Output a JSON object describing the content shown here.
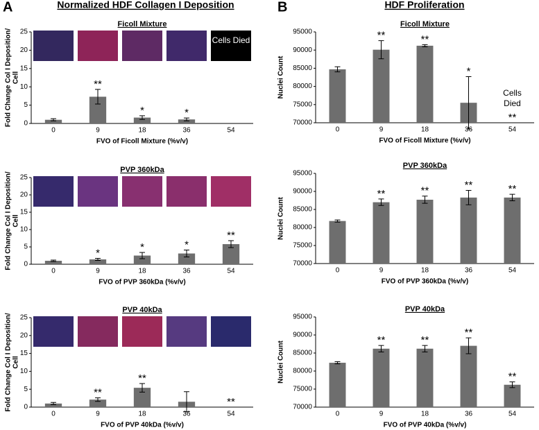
{
  "panels": [
    {
      "letter": "A",
      "title": "Normalized HDF Collagen I Deposition"
    },
    {
      "letter": "B",
      "title": "HDF Proliferation"
    }
  ],
  "chart_data": [
    {
      "type": "bar",
      "title": "Ficoll Mixture",
      "y_label": [
        "Fold Change Col I Deposition/",
        "Cell"
      ],
      "x_label": "FVO of Ficoll Mixture (%v/v)",
      "categories": [
        "0",
        "9",
        "18",
        "36",
        "54"
      ],
      "values": [
        1,
        7.3,
        1.6,
        1.1,
        null
      ],
      "errors": [
        0.3,
        2.0,
        0.5,
        0.4,
        null
      ],
      "significance": [
        null,
        "**",
        "*",
        "*",
        null
      ],
      "image_label": "Cells Died",
      "color": "#6e6e6e",
      "ylim": [
        0,
        25
      ],
      "yticks": [
        0,
        5,
        10,
        15,
        20,
        25
      ]
    },
    {
      "type": "bar",
      "title": "PVP 360kDa",
      "y_label": [
        "Fold Change Col I Deposition/",
        "Cell"
      ],
      "x_label": "FVO of PVP 360kDa (%v/v)",
      "categories": [
        "0",
        "9",
        "18",
        "36",
        "54"
      ],
      "values": [
        1,
        1.4,
        2.5,
        3.1,
        5.8
      ],
      "errors": [
        0.2,
        0.3,
        0.9,
        1.0,
        1.0
      ],
      "significance": [
        null,
        "*",
        "*",
        "*",
        "**"
      ],
      "color": "#6e6e6e",
      "ylim": [
        0,
        25
      ],
      "yticks": [
        0,
        5,
        10,
        15,
        20,
        25
      ]
    },
    {
      "type": "bar",
      "title": "PVP 40kDa",
      "y_label": [
        "Fold Change Col I Deposition/",
        "Cell"
      ],
      "x_label": "FVO of PVP 40kDa (%v/v)",
      "categories": [
        "0",
        "9",
        "18",
        "36",
        "54"
      ],
      "values": [
        1,
        2.1,
        5.4,
        1.5,
        null
      ],
      "errors": [
        0.3,
        0.5,
        1.2,
        2.8,
        null
      ],
      "significance": [
        null,
        "**",
        "**",
        null,
        "**"
      ],
      "color": "#6e6e6e",
      "ylim": [
        0,
        25
      ],
      "yticks": [
        0,
        5,
        10,
        15,
        20,
        25
      ]
    },
    {
      "type": "bar",
      "title": "Ficoll Mixture",
      "y_label": [
        "Nuclei Count"
      ],
      "x_label": "FVO of Ficoll Mixture (%v/v)",
      "categories": [
        "0",
        "9",
        "18",
        "36",
        "54"
      ],
      "values": [
        84700,
        90100,
        91200,
        75500,
        null
      ],
      "errors": [
        700,
        2500,
        300,
        7200,
        null
      ],
      "significance": [
        null,
        "**",
        "**",
        "*",
        "**"
      ],
      "annotation": "Cells Died",
      "color": "#6e6e6e",
      "ylim": [
        70000,
        95000
      ],
      "yticks": [
        70000,
        75000,
        80000,
        85000,
        90000,
        95000
      ]
    },
    {
      "type": "bar",
      "title": "PVP 360kDa",
      "y_label": [
        "Nuclei Count"
      ],
      "x_label": "FVO of PVP 360kDa (%v/v)",
      "categories": [
        "0",
        "9",
        "18",
        "36",
        "54"
      ],
      "values": [
        81800,
        87000,
        87700,
        88300,
        88300
      ],
      "errors": [
        300,
        900,
        1000,
        2000,
        900
      ],
      "significance": [
        null,
        "**",
        "**",
        "**",
        "**"
      ],
      "color": "#6e6e6e",
      "ylim": [
        70000,
        95000
      ],
      "yticks": [
        70000,
        75000,
        80000,
        85000,
        90000,
        95000
      ]
    },
    {
      "type": "bar",
      "title": "PVP 40kDa",
      "y_label": [
        "Nuclei Count"
      ],
      "x_label": "FVO of PVP 40kDa  (%v/v)",
      "categories": [
        "0",
        "9",
        "18",
        "36",
        "54"
      ],
      "values": [
        82300,
        86200,
        86200,
        87000,
        76200
      ],
      "errors": [
        300,
        900,
        900,
        2200,
        800
      ],
      "significance": [
        null,
        "**",
        "**",
        "**",
        "**"
      ],
      "color": "#6e6e6e",
      "ylim": [
        70000,
        95000
      ],
      "yticks": [
        70000,
        75000,
        80000,
        85000,
        90000,
        95000
      ]
    }
  ]
}
